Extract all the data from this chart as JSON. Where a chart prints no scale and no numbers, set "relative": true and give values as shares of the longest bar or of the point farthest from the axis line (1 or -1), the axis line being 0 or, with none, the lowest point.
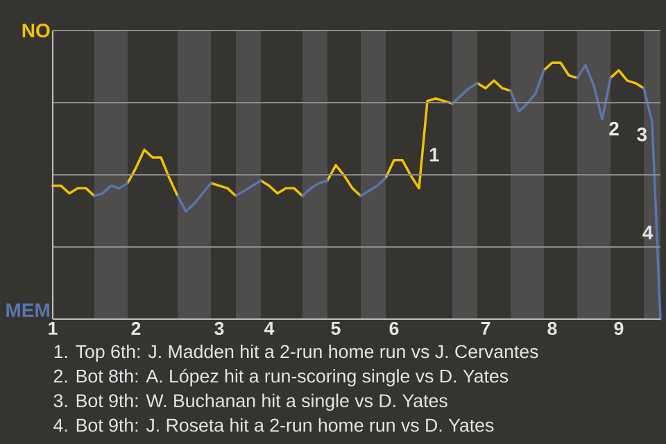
{
  "chart_data": {
    "type": "line",
    "relative": true,
    "categories": [
      "1",
      null,
      null,
      null,
      null,
      null,
      null,
      null,
      null,
      null,
      "2",
      null,
      null,
      null,
      null,
      null,
      null,
      null,
      null,
      null,
      "3",
      null,
      null,
      null,
      null,
      null,
      "4",
      null,
      null,
      null,
      null,
      null,
      null,
      null,
      "5",
      null,
      null,
      null,
      null,
      null,
      null,
      "6",
      null,
      null,
      null,
      null,
      null,
      null,
      null,
      null,
      null,
      null,
      "7",
      null,
      null,
      null,
      null,
      null,
      null,
      null,
      "8",
      null,
      null,
      null,
      null,
      null,
      null,
      null,
      "9",
      null,
      null,
      null,
      null,
      null
    ],
    "series": [
      {
        "color": "#f6c200",
        "values": [
          0.52,
          0.52,
          0.49,
          0.51,
          0.51,
          0.48,
          null,
          null,
          null,
          0.53,
          0.59,
          0.66,
          0.63,
          0.63,
          0.55,
          0.48,
          null,
          null,
          null,
          0.53,
          0.52,
          0.51,
          0.48,
          null,
          null,
          0.54,
          0.52,
          0.49,
          0.51,
          0.51,
          0.48,
          null,
          null,
          0.54,
          0.6,
          0.56,
          0.51,
          0.48,
          null,
          null,
          0.55,
          0.62,
          0.62,
          0.56,
          0.51,
          0.85,
          0.86,
          0.85,
          0.84,
          null,
          null,
          0.92,
          0.9,
          0.93,
          0.9,
          0.89,
          null,
          null,
          null,
          0.97,
          1.0,
          1.0,
          0.95,
          0.94,
          null,
          null,
          null,
          0.94,
          0.97,
          0.93,
          0.92,
          0.9,
          null,
          null
        ]
      },
      {
        "color": "#5876b0",
        "values": [
          null,
          null,
          null,
          null,
          null,
          0.48,
          0.49,
          0.52,
          0.51,
          0.53,
          null,
          null,
          null,
          null,
          null,
          0.48,
          0.42,
          0.45,
          0.49,
          0.53,
          null,
          null,
          0.48,
          0.5,
          0.52,
          0.54,
          null,
          null,
          null,
          null,
          0.48,
          0.51,
          0.53,
          0.54,
          null,
          null,
          null,
          0.48,
          0.5,
          0.52,
          0.55,
          null,
          null,
          null,
          null,
          null,
          null,
          null,
          0.84,
          0.87,
          0.9,
          0.92,
          null,
          null,
          null,
          0.89,
          0.81,
          0.84,
          0.88,
          0.97,
          null,
          null,
          null,
          0.94,
          0.99,
          0.91,
          0.78,
          0.94,
          null,
          null,
          null,
          0.9,
          0.77,
          0
        ]
      }
    ],
    "grid": "y",
    "annotations": [
      "NO",
      "MEM",
      "1",
      "2",
      "3",
      "4",
      "1. Top 6th: J. Madden hit a 2-run home run vs J. Cervantes",
      "2. Bot 8th: A. López hit a run-scoring single vs D. Yates",
      "3. Bot 9th: W. Buchanan hit a single vs D. Yates",
      "4. Bot 9th: J. Roseta hit a 2-run home run vs D. Yates"
    ]
  }
}
